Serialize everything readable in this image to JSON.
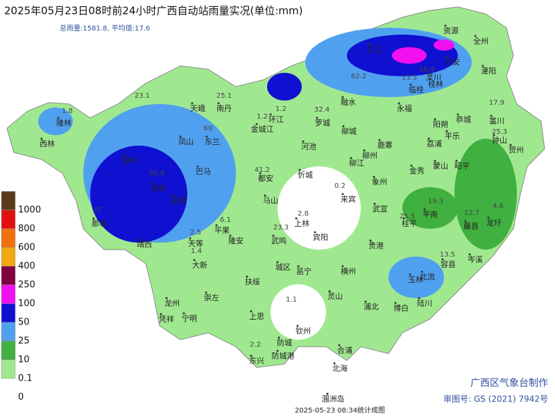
{
  "header": {
    "title": "2025年05月23日08时前24小时广西自动站雨量实况(单位:mm)",
    "subtitle": "总雨量:1581.8, 平均值:17.6"
  },
  "legend": {
    "labels": [
      "1000",
      "800",
      "600",
      "400",
      "250",
      "100",
      "50",
      "25",
      "10",
      "0.1",
      "0"
    ],
    "colors": [
      "#5a3a1a",
      "#e01010",
      "#f07010",
      "#f0a810",
      "#800040",
      "#f010f0",
      "#1010d0",
      "#50a0f0",
      "#40b040",
      "#a0e890",
      "#ffffff"
    ]
  },
  "places": [
    "隆林",
    "西林",
    "田林",
    "天峨",
    "南丹",
    "凤山",
    "东兰",
    "巴马",
    "环江",
    "金城江",
    "罗城",
    "融水",
    "三江",
    "资源",
    "全州",
    "兴安",
    "灌阳",
    "灵川",
    "桂林",
    "临桂",
    "永福",
    "阳朔",
    "恭城",
    "平乐",
    "荔浦",
    "富川",
    "钟山",
    "贺州",
    "昭平",
    "蒙山",
    "金秀",
    "鹿寨",
    "柳州",
    "柳江",
    "象州",
    "忻城",
    "都安",
    "河池",
    "柳城",
    "来宾",
    "武宣",
    "马山",
    "上林",
    "宾阳",
    "武鸣",
    "隆安",
    "平果",
    "田阳",
    "百色",
    "那坡",
    "靖西",
    "天等",
    "大新",
    "城区",
    "邕宁",
    "横州",
    "贵港",
    "桂平",
    "平南",
    "藤县",
    "龙圩",
    "岑溪",
    "容县",
    "北流",
    "玉林",
    "陆川",
    "博白",
    "浦北",
    "灵山",
    "钦州",
    "扶绥",
    "崇左",
    "龙州",
    "凭祥",
    "宁明",
    "上思",
    "防城",
    "防城港",
    "东兴",
    "合浦",
    "北海",
    "涠洲岛"
  ],
  "rain_labels": [
    "23.1",
    "25.1",
    "1.2",
    "1.2",
    "60",
    "50.9",
    "37",
    "32.4",
    "62.2",
    "18.4",
    "13.3",
    "17.9",
    "25.3",
    "41.2",
    "2.8",
    "23.3",
    "19.3",
    "25.5",
    "12.7",
    "4.6",
    "13.5",
    "2.5",
    "6.1",
    "1.4",
    "0.2",
    "2.2",
    "1.1",
    "1.8"
  ],
  "footer": {
    "maker": "广西区气象台制作",
    "approval": "审图号: GS (2021) 7942号",
    "time": "2025-05-23 08:34统计成图"
  }
}
